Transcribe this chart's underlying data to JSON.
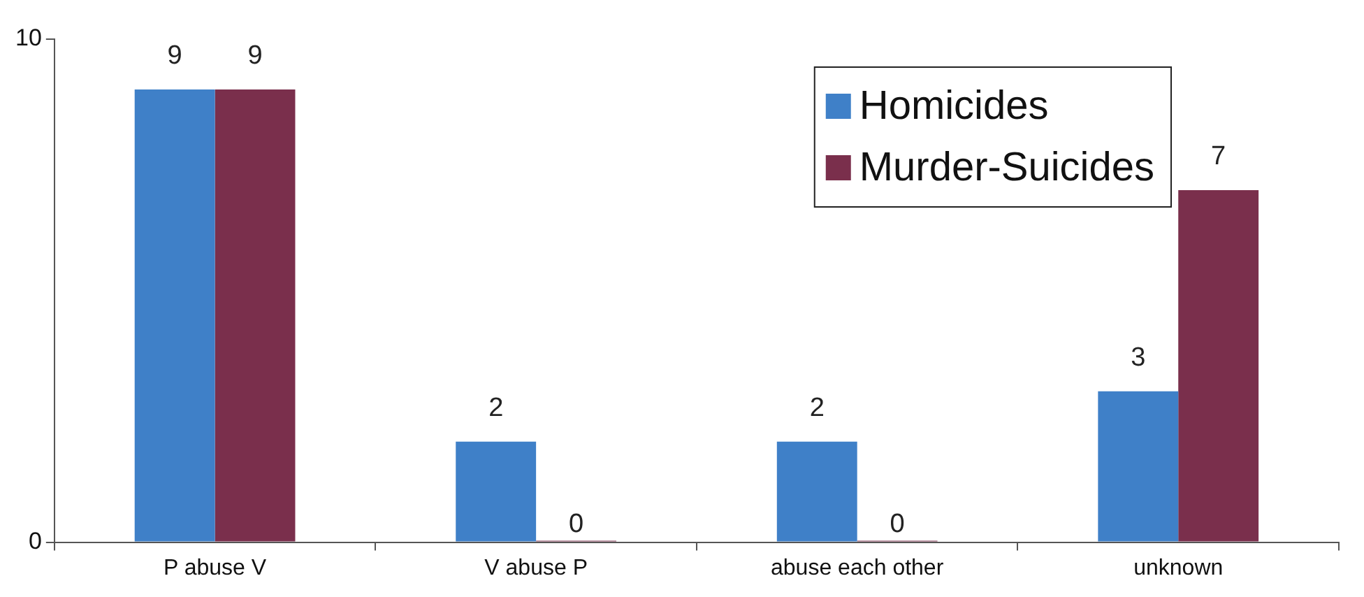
{
  "chart_data": {
    "type": "bar",
    "categories": [
      "P abuse V",
      "V abuse P",
      "abuse each other",
      "unknown"
    ],
    "series": [
      {
        "name": "Homicides",
        "color": "#3f80c8",
        "values": [
          9,
          2,
          2,
          3
        ]
      },
      {
        "name": "Murder-Suicides",
        "color": "#7a2f4c",
        "values": [
          9,
          0,
          0,
          7
        ]
      }
    ],
    "ylim": [
      0,
      10
    ],
    "yticks": [
      0,
      10
    ],
    "grid": false,
    "legend": "top right",
    "data_labels": true
  }
}
